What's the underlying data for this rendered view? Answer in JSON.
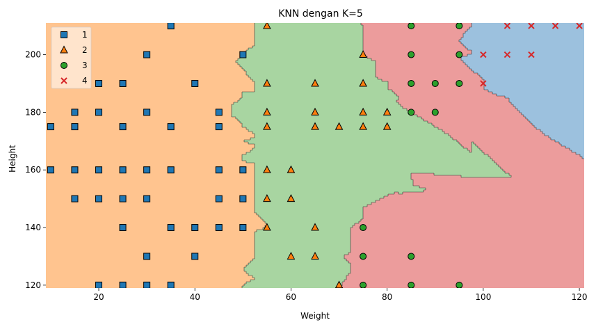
{
  "chart_data": {
    "type": "scatter",
    "title": "KNN dengan K=5",
    "xlabel": "Weight",
    "ylabel": "Height",
    "xlim": [
      9,
      121
    ],
    "ylim": [
      119,
      211
    ],
    "xticks": [
      20,
      40,
      60,
      80,
      100,
      120
    ],
    "yticks": [
      120,
      140,
      160,
      180,
      200
    ],
    "grid": false,
    "legend_position": "top-left",
    "legend": [
      {
        "label": "1",
        "marker": "square",
        "color": "#1f77b4"
      },
      {
        "label": "2",
        "marker": "triangle",
        "color": "#ff7f0e"
      },
      {
        "label": "3",
        "marker": "circle",
        "color": "#2ca02c"
      },
      {
        "label": "4",
        "marker": "x",
        "color": "#d62728"
      }
    ],
    "region_colors": {
      "1": "#ffc48f",
      "2": "#a8d5a1",
      "3": "#ec9c9c",
      "4": "#9cc1de"
    },
    "series": [
      {
        "name": "1",
        "points": [
          [
            10,
            175
          ],
          [
            10,
            160
          ],
          [
            15,
            180
          ],
          [
            15,
            175
          ],
          [
            15,
            160
          ],
          [
            15,
            150
          ],
          [
            20,
            190
          ],
          [
            20,
            180
          ],
          [
            20,
            160
          ],
          [
            20,
            150
          ],
          [
            20,
            120
          ],
          [
            25,
            190
          ],
          [
            25,
            175
          ],
          [
            25,
            160
          ],
          [
            25,
            150
          ],
          [
            25,
            140
          ],
          [
            25,
            120
          ],
          [
            30,
            200
          ],
          [
            30,
            180
          ],
          [
            30,
            160
          ],
          [
            30,
            150
          ],
          [
            30,
            130
          ],
          [
            30,
            120
          ],
          [
            35,
            210
          ],
          [
            35,
            175
          ],
          [
            35,
            160
          ],
          [
            35,
            140
          ],
          [
            35,
            120
          ],
          [
            40,
            190
          ],
          [
            40,
            140
          ],
          [
            40,
            130
          ],
          [
            45,
            180
          ],
          [
            45,
            175
          ],
          [
            45,
            160
          ],
          [
            45,
            150
          ],
          [
            45,
            140
          ],
          [
            50,
            200
          ],
          [
            50,
            160
          ],
          [
            50,
            150
          ],
          [
            50,
            140
          ]
        ]
      },
      {
        "name": "2",
        "points": [
          [
            55,
            210
          ],
          [
            55,
            190
          ],
          [
            55,
            180
          ],
          [
            55,
            175
          ],
          [
            55,
            160
          ],
          [
            55,
            150
          ],
          [
            55,
            140
          ],
          [
            60,
            160
          ],
          [
            60,
            150
          ],
          [
            60,
            130
          ],
          [
            65,
            190
          ],
          [
            65,
            180
          ],
          [
            65,
            175
          ],
          [
            65,
            140
          ],
          [
            65,
            130
          ],
          [
            70,
            175
          ],
          [
            70,
            120
          ],
          [
            75,
            200
          ],
          [
            75,
            190
          ],
          [
            75,
            180
          ],
          [
            75,
            175
          ],
          [
            80,
            180
          ],
          [
            80,
            175
          ]
        ]
      },
      {
        "name": "3",
        "points": [
          [
            75,
            140
          ],
          [
            75,
            130
          ],
          [
            75,
            120
          ],
          [
            85,
            210
          ],
          [
            85,
            200
          ],
          [
            85,
            190
          ],
          [
            85,
            180
          ],
          [
            85,
            130
          ],
          [
            85,
            120
          ],
          [
            90,
            190
          ],
          [
            90,
            180
          ],
          [
            95,
            210
          ],
          [
            95,
            200
          ],
          [
            95,
            190
          ],
          [
            95,
            120
          ]
        ]
      },
      {
        "name": "4",
        "points": [
          [
            100,
            200
          ],
          [
            100,
            190
          ],
          [
            105,
            210
          ],
          [
            105,
            200
          ],
          [
            110,
            210
          ],
          [
            110,
            200
          ],
          [
            115,
            210
          ],
          [
            120,
            210
          ]
        ]
      }
    ]
  }
}
